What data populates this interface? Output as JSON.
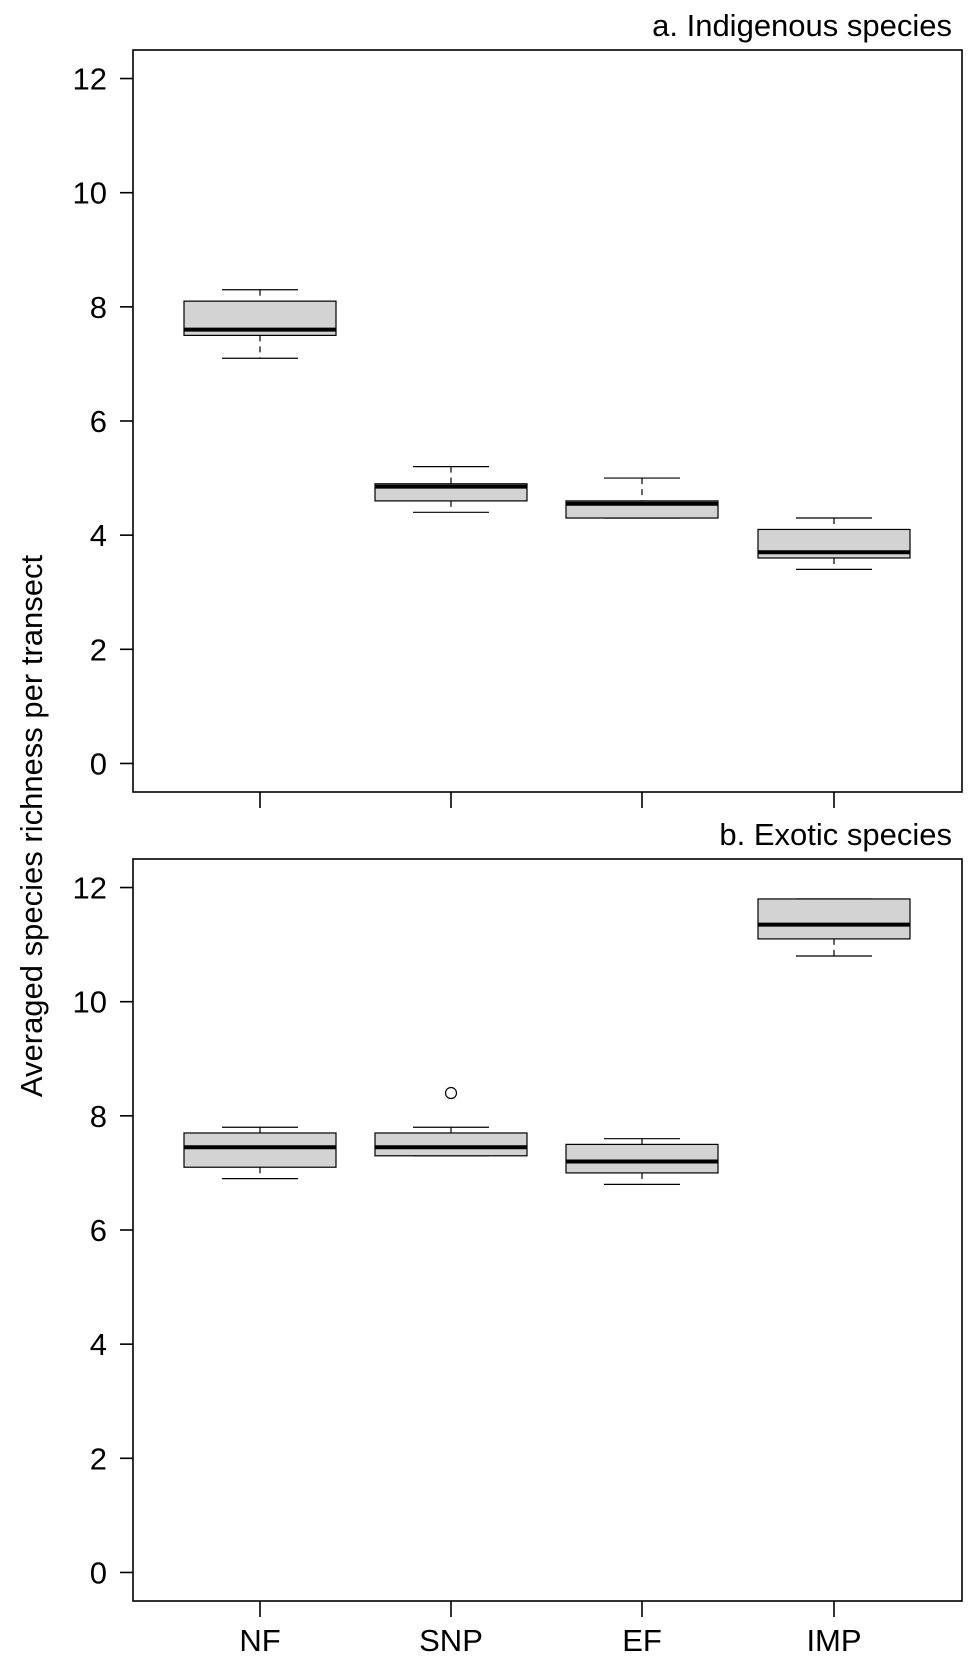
{
  "chart_data": {
    "type": "box",
    "ylabel": "Averaged species richness per transect",
    "categories": [
      "NF",
      "SNP",
      "EF",
      "IMP"
    ],
    "box_color": "#d3d3d3",
    "panels": [
      {
        "title": "a. Indigenous species",
        "ylim": [
          -0.5,
          12.5
        ],
        "yticks": [
          0,
          2,
          4,
          6,
          8,
          10,
          12
        ],
        "xticklabels_shown": false,
        "boxes": [
          {
            "category": "NF",
            "whisker_low": 7.1,
            "q1": 7.5,
            "median": 7.6,
            "q3": 8.1,
            "whisker_high": 8.3,
            "outliers": []
          },
          {
            "category": "SNP",
            "whisker_low": 4.4,
            "q1": 4.6,
            "median": 4.85,
            "q3": 4.9,
            "whisker_high": 5.2,
            "outliers": []
          },
          {
            "category": "EF",
            "whisker_low": 4.3,
            "q1": 4.3,
            "median": 4.55,
            "q3": 4.6,
            "whisker_high": 5.0,
            "outliers": []
          },
          {
            "category": "IMP",
            "whisker_low": 3.4,
            "q1": 3.6,
            "median": 3.7,
            "q3": 4.1,
            "whisker_high": 4.3,
            "outliers": []
          }
        ]
      },
      {
        "title": "b. Exotic species",
        "ylim": [
          -0.5,
          12.5
        ],
        "yticks": [
          0,
          2,
          4,
          6,
          8,
          10,
          12
        ],
        "xticklabels_shown": true,
        "boxes": [
          {
            "category": "NF",
            "whisker_low": 6.9,
            "q1": 7.1,
            "median": 7.45,
            "q3": 7.7,
            "whisker_high": 7.8,
            "outliers": []
          },
          {
            "category": "SNP",
            "whisker_low": 7.3,
            "q1": 7.3,
            "median": 7.45,
            "q3": 7.7,
            "whisker_high": 7.8,
            "outliers": [
              8.4
            ]
          },
          {
            "category": "EF",
            "whisker_low": 6.8,
            "q1": 7.0,
            "median": 7.2,
            "q3": 7.5,
            "whisker_high": 7.6,
            "outliers": []
          },
          {
            "category": "IMP",
            "whisker_low": 10.8,
            "q1": 11.1,
            "median": 11.35,
            "q3": 11.8,
            "whisker_high": 11.8,
            "outliers": []
          }
        ]
      }
    ]
  }
}
